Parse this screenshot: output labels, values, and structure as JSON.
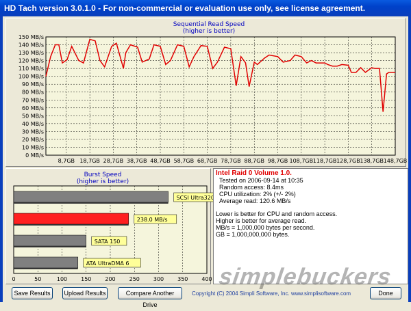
{
  "window": {
    "title": "HD Tach version 3.0.1.0  - For non-commercial or evaluation use only, see license agreement."
  },
  "read_chart": {
    "title": "Sequential Read Speed",
    "subtitle": "(higher is better)",
    "y_ticks": [
      "0 MB/s",
      "10 MB/s",
      "20 MB/s",
      "30 MB/s",
      "40 MB/s",
      "50 MB/s",
      "60 MB/s",
      "70 MB/s",
      "80 MB/s",
      "90 MB/s",
      "100 MB/s",
      "110 MB/s",
      "120 MB/s",
      "130 MB/s",
      "140 MB/s",
      "150 MB/s"
    ],
    "x_ticks": [
      "8,7GB",
      "18,7GB",
      "28,7GB",
      "38,7GB",
      "48,7GB",
      "58,7GB",
      "68,7GB",
      "78,7GB",
      "88,7GB",
      "98,7GB",
      "108,7GB",
      "118,7GB",
      "128,7GB",
      "138,7GB",
      "148,7GB"
    ],
    "line_color": "#E00000"
  },
  "burst_chart": {
    "title": "Burst Speed",
    "subtitle": "(higher is better)",
    "x_ticks": [
      "0",
      "50",
      "100",
      "150",
      "200",
      "250",
      "300",
      "350",
      "400"
    ]
  },
  "chart_data": [
    {
      "type": "line",
      "title": "Sequential Read Speed",
      "subtitle": "(higher is better)",
      "xlabel": "",
      "ylabel": "",
      "ylim": [
        0,
        150
      ],
      "xlim": [
        0,
        148.7
      ],
      "grid": true,
      "series": [
        {
          "x": [
            0,
            2,
            4,
            5.5,
            7,
            9,
            11,
            14,
            16,
            18.7,
            21,
            23,
            25,
            28,
            30,
            33,
            34,
            36,
            39,
            41,
            44,
            46,
            48.7,
            51,
            53,
            56,
            58.7,
            61,
            63,
            66,
            68.7,
            71,
            73,
            76,
            78.7,
            81,
            83,
            85,
            86.5,
            88.7,
            90,
            93,
            95,
            98.7,
            101,
            104,
            106,
            108.7,
            111,
            113,
            115,
            118.7,
            120,
            122,
            124,
            126,
            128.7,
            130,
            132,
            134,
            136,
            138.7,
            140,
            142,
            143.5,
            145,
            146,
            148.7
          ],
          "y": [
            100,
            125,
            140,
            140,
            117,
            121,
            138,
            120,
            117,
            147,
            145,
            120,
            112,
            138,
            142,
            110,
            130,
            140,
            137,
            118,
            122,
            140,
            138,
            115,
            120,
            140,
            138,
            112,
            125,
            139,
            138,
            110,
            118,
            137,
            135,
            88,
            125,
            117,
            87,
            118,
            115,
            123,
            127,
            125,
            118,
            120,
            127,
            125,
            117,
            120,
            117,
            117,
            115,
            113,
            113,
            115,
            114,
            105,
            105,
            111,
            105,
            111,
            110,
            110,
            55,
            103,
            105,
            105
          ]
        }
      ]
    },
    {
      "type": "bar",
      "title": "Burst Speed",
      "subtitle": "(higher is better)",
      "xlim": [
        0,
        400
      ],
      "categories": [
        "SCSI Ultra320",
        "238.0 MB/s",
        "SATA 150",
        "ATA UltraDMA 6"
      ],
      "values": [
        320,
        238,
        150,
        133
      ]
    }
  ],
  "info": {
    "drive_name": "Intel Raid 0 Volume 1.0.",
    "tested_on": "Tested on 2006-09-14 at 10:35",
    "random_access": "Random access: 8.4ms",
    "cpu_utilization": "CPU utilization: 2% (+/- 2%)",
    "average_read": "Average read: 120.6 MB/s",
    "note1": "Lower is better for CPU and random access.",
    "note2": "Higher is better for average read.",
    "note3": "MB/s = 1,000,000 bytes per second.",
    "note4": "GB = 1,000,000,000 bytes."
  },
  "buttons": {
    "save": "Save Results",
    "upload": "Upload Results",
    "compare": "Compare Another Drive",
    "done": "Done"
  },
  "footer": {
    "copyright": "Copyright (C) 2004 Simpli Software, Inc. www.simplisoftware.com"
  },
  "watermark": {
    "text": "simplebuckers"
  },
  "colors": {
    "title_bar": "#0A3FBC",
    "chart_bg": "#F5F5DC",
    "burst_highlight": "#FF2020",
    "burst_bar": "#808080",
    "label_bg": "#FFFF99"
  }
}
